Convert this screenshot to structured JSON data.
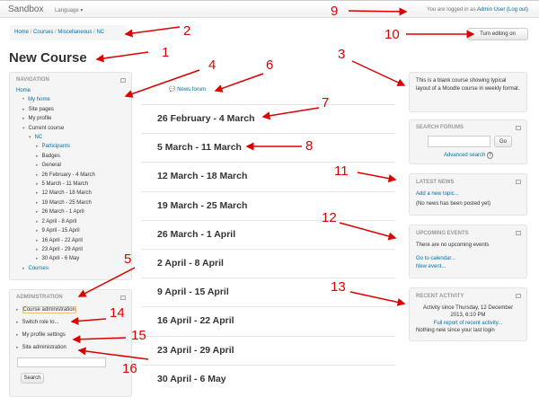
{
  "navbar": {
    "brand": "Sandbox",
    "language": "Language ▾",
    "login_prefix": "You are logged in as ",
    "user": "Admin User",
    "logout": "(Log out)"
  },
  "breadcrumb": [
    "Home",
    "Courses",
    "Miscellaneous",
    "NC"
  ],
  "page_title": "New Course",
  "turn_editing": "Turn editing on",
  "navigation": {
    "title": "Navigation",
    "home": "Home",
    "items": [
      "My home",
      "Site pages",
      "My profile",
      "Current course",
      "NC",
      "Participants",
      "Badges",
      "General",
      "26 February - 4 March",
      "5 March - 11 March",
      "12 March - 18 March",
      "19 March - 25 March",
      "26 March - 1 April",
      "2 April - 8 April",
      "9 April - 15 April",
      "16 April - 22 April",
      "23 April - 29 April",
      "30 April - 6 May",
      "Courses"
    ]
  },
  "administration": {
    "title": "Administration",
    "items": [
      "Course administration",
      "Switch role to...",
      "My profile settings",
      "Site administration"
    ],
    "search_button": "Search",
    "search_value": ""
  },
  "main": {
    "news_forum": "News forum",
    "sections": [
      "26 February - 4 March",
      "5 March - 11 March",
      "12 March - 18 March",
      "19 March - 25 March",
      "26 March - 1 April",
      "2 April - 8 April",
      "9 April - 15 April",
      "16 April - 22 April",
      "23 April - 29 April",
      "30 April - 6 May"
    ]
  },
  "summary": "This is a blank course showing typical layout of a Moodle course in weekly format.",
  "search_forums": {
    "title": "Search forums",
    "go": "Go",
    "advanced": "Advanced search",
    "help": "?",
    "value": ""
  },
  "latest_news": {
    "title": "Latest news",
    "add": "Add a new topic...",
    "none": "(No news has been posted yet)"
  },
  "upcoming_events": {
    "title": "Upcoming events",
    "none": "There are no upcoming events",
    "calendar": "Go to calendar...",
    "new_event": "New event..."
  },
  "recent_activity": {
    "title": "Recent activity",
    "since": "Activity since Thursday, 12 December 2013, 6:10 PM",
    "full_report": "Full report of recent activity...",
    "nothing": "Nothing new since your last login"
  },
  "annotations": [
    "1",
    "2",
    "3",
    "4",
    "5",
    "6",
    "7",
    "8",
    "9",
    "10",
    "11",
    "12",
    "13",
    "14",
    "15",
    "16"
  ],
  "colors": {
    "link": "#0070a8",
    "annotation": "#dd0000"
  }
}
